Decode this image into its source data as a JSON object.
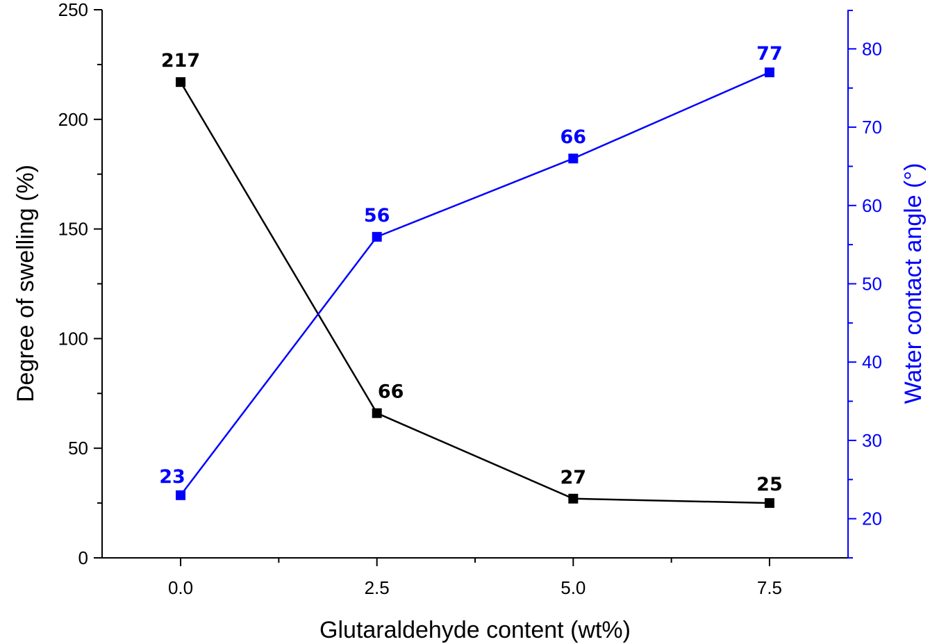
{
  "chart_data": {
    "type": "line",
    "x": [
      0.0,
      2.5,
      5.0,
      7.5
    ],
    "x_tick_labels": [
      "0.0",
      "2.5",
      "5.0",
      "7.5"
    ],
    "xlim": [
      -1.0,
      8.5
    ],
    "xlabel": "Glutaraldehyde content (wt%)",
    "y_left": {
      "label": "Degree of swelling (%)",
      "ylim": [
        0,
        250
      ],
      "ticks": [
        "0",
        "50",
        "100",
        "150",
        "200",
        "250"
      ],
      "color": "#000000"
    },
    "y_right": {
      "label": "Water contact angle (°)",
      "ylim": [
        15,
        85
      ],
      "ticks": [
        "20",
        "30",
        "40",
        "50",
        "60",
        "70",
        "80"
      ],
      "color": "#0000ff"
    },
    "series": [
      {
        "axis": "left",
        "color": "#000000",
        "values": [
          217,
          66,
          27,
          25
        ],
        "labels": [
          "217",
          "66",
          "27",
          "25"
        ]
      },
      {
        "axis": "right",
        "color": "#0000ff",
        "values": [
          23,
          56,
          66,
          77
        ],
        "labels": [
          "23",
          "56",
          "66",
          "77"
        ]
      }
    ],
    "grid": false,
    "marker": "square"
  }
}
